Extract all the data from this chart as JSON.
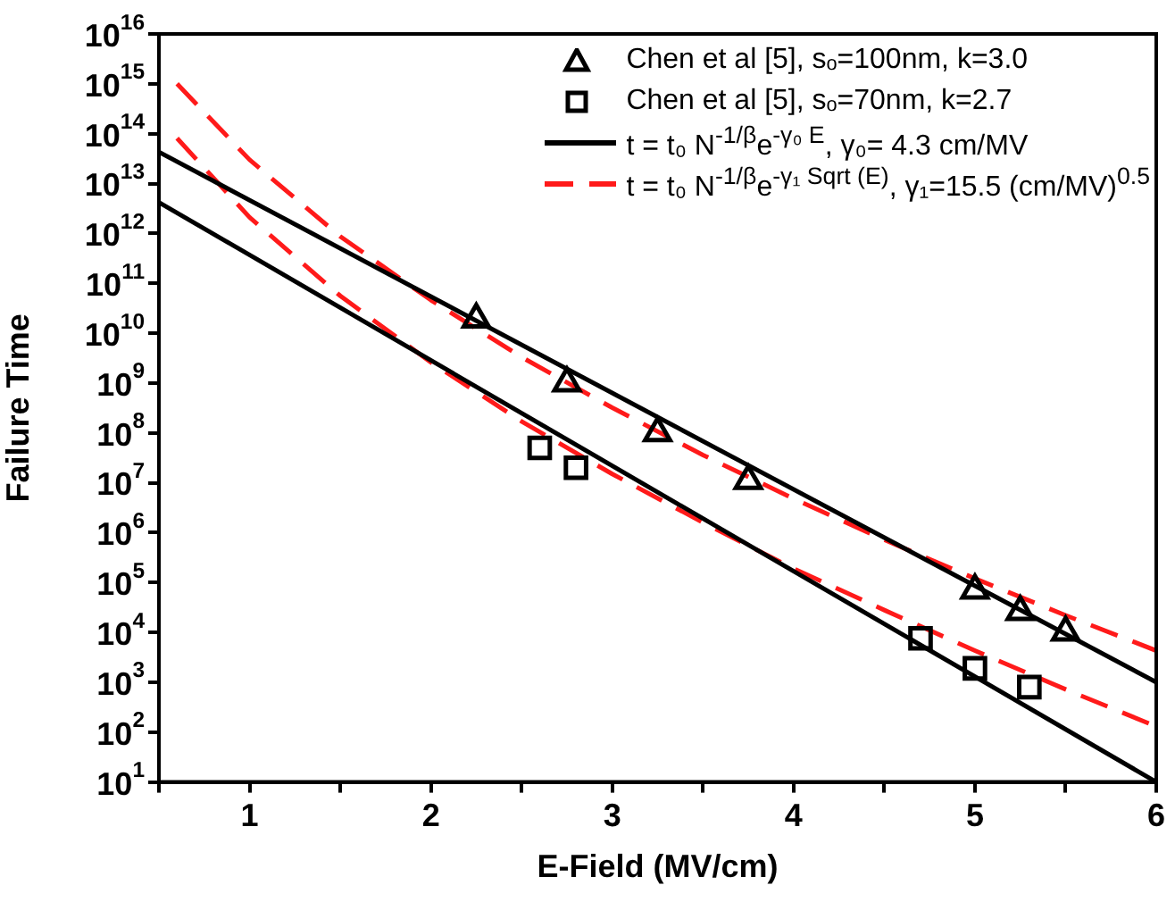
{
  "chart_data": {
    "type": "scatter",
    "xlabel": "E-Field (MV/cm)",
    "ylabel": "Failure Time",
    "log": "y",
    "grid": false,
    "legend": "top right",
    "xlim": [
      0.5,
      6
    ],
    "xticks": [
      {
        "value": 0.5,
        "label": null
      },
      1,
      {
        "value": 1.5,
        "label": null
      },
      2,
      {
        "value": 2.5,
        "label": null
      },
      3,
      {
        "value": 3.5,
        "label": null
      },
      4,
      {
        "value": 4.5,
        "label": null
      },
      5,
      {
        "value": 5.5,
        "label": null
      },
      6
    ],
    "ylim": [
      10,
      1e+16
    ],
    "yticks": [
      {
        "value": 10,
        "label": "10$^{1}$"
      },
      {
        "value": 100,
        "label": "10$^{2}$"
      },
      {
        "value": 1000.0,
        "label": "10$^{3}$"
      },
      {
        "value": 10000.0,
        "label": "10$^{4}$"
      },
      {
        "value": 100000.0,
        "label": "10$^{5}$"
      },
      {
        "value": 1000000.0,
        "label": "10$^{6}$"
      },
      {
        "value": 10000000.0,
        "label": "10$^{7}$"
      },
      {
        "value": 100000000.0,
        "label": "10$^{8}$"
      },
      {
        "value": 1000000000.0,
        "label": "10$^{9}$"
      },
      {
        "value": 10000000000.0,
        "label": "10$^{10}$"
      },
      {
        "value": 100000000000.0,
        "label": "10$^{11}$"
      },
      {
        "value": 1000000000000.0,
        "label": "10$^{12}$"
      },
      {
        "value": 10000000000000.0,
        "label": "10$^{13}$"
      },
      {
        "value": 100000000000000.0,
        "label": "10$^{14}$"
      },
      {
        "value": 1000000000000000.0,
        "label": "10$^{15}$"
      },
      {
        "value": 1e+16,
        "label": "10$^{16}$"
      }
    ],
    "series": [
      {
        "name": "Chen et al [5], sₒ=100nm, k=3.0",
        "type": "scatter",
        "marker": "triangle",
        "color": "#000000",
        "x": [
          2.25,
          2.75,
          3.25,
          3.75,
          5.0,
          5.25,
          5.5
        ],
        "values": [
          19000000000.0,
          1000000000.0,
          100000000.0,
          11000000.0,
          70000.0,
          26000.0,
          10000.0
        ]
      },
      {
        "name": "Chen et al [5], sₒ=70nm, k=2.7",
        "type": "scatter",
        "marker": "square",
        "color": "#000000",
        "x": [
          2.6,
          2.8,
          4.7,
          5.0,
          5.3
        ],
        "values": [
          50000000.0,
          20000000.0,
          7600.0,
          1900.0,
          800.0
        ]
      },
      {
        "name": "t = t₀ N$^{-1/β}$e$^{-γ₀ E}$, γ₀= 4.3 cm/MV",
        "type": "line",
        "line_style": "solid",
        "color": "#000000",
        "x": [
          0.5,
          6
        ],
        "values": [
          43000000000000.0,
          1000.0
        ]
      },
      {
        "type": "line",
        "line_style": "solid",
        "color": "#000000",
        "x": [
          0.5,
          6
        ],
        "values": [
          4200000000000.0,
          10
        ]
      },
      {
        "name": "t = t₀ N$^{-1/β}$e$^{-γ₁ Sqrt (E)}$, γ₁=15.5 (cm/MV)$^{0.5}$",
        "type": "line",
        "line_style": "dashed",
        "color": "#ff1a1a",
        "x": [
          0.6,
          1,
          1.5,
          2,
          2.5,
          3,
          3.5,
          4,
          4.5,
          5,
          5.5,
          6
        ],
        "values": [
          1000000000000000.0,
          30000000000000.0,
          870000000000.0,
          46000000000.0,
          3300000000.0,
          320000000.0,
          36000000.0,
          4800000.0,
          720000.0,
          120000.0,
          22000.0,
          4300.0
        ]
      },
      {
        "type": "line",
        "line_style": "dashed",
        "color": "#ff1a1a",
        "x": [
          0.6,
          1,
          1.5,
          2,
          2.5,
          3,
          3.5,
          4,
          4.5,
          5,
          5.5,
          6
        ],
        "values": [
          81000000000000.0,
          2100000000000.0,
          56000000000.0,
          2600000000.0,
          170000000.0,
          15000000.0,
          1600000.0,
          190000.0,
          28000.0,
          4300.0,
          720.0,
          130.0
        ]
      }
    ]
  }
}
